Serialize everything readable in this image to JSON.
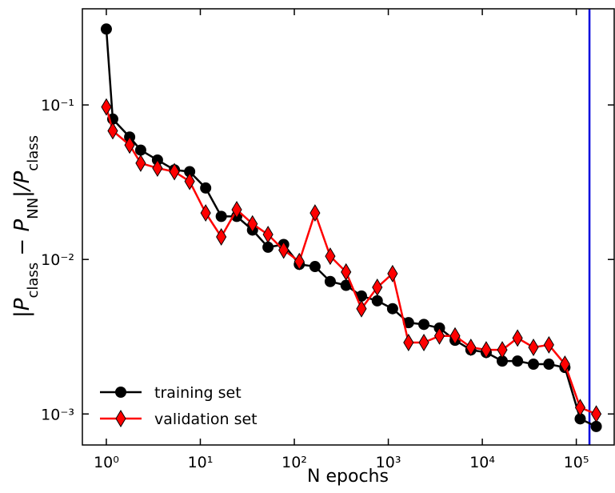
{
  "chart_data": {
    "type": "line",
    "xlabel": "N epochs",
    "ylabel": [
      "|P",
      "class",
      " − P",
      "NN",
      "|/P",
      "class"
    ],
    "x": [
      1,
      1.17,
      1.77,
      2.32,
      3.5,
      5.3,
      7.7,
      11.4,
      16.7,
      24.4,
      35.9,
      52.5,
      77,
      113,
      166,
      241,
      355,
      518,
      763,
      1110,
      1640,
      2390,
      3500,
      5130,
      7560,
      11000,
      16300,
      23700,
      35000,
      51100,
      75600,
      110000,
      163000
    ],
    "series": [
      {
        "name": "training set",
        "color": "#000000",
        "marker": "circle",
        "values": [
          0.31,
          0.081,
          0.062,
          0.051,
          0.044,
          0.038,
          0.037,
          0.029,
          0.019,
          0.019,
          0.0155,
          0.012,
          0.0125,
          0.0093,
          0.009,
          0.0072,
          0.0068,
          0.0058,
          0.0054,
          0.0048,
          0.0039,
          0.0038,
          0.0036,
          0.003,
          0.0026,
          0.0025,
          0.0022,
          0.0022,
          0.0021,
          0.0021,
          0.002,
          0.00093,
          0.00083
        ]
      },
      {
        "name": "validation set",
        "color": "#ff0000",
        "marker": "diamond",
        "values": [
          0.097,
          0.068,
          0.055,
          0.042,
          0.039,
          0.037,
          0.032,
          0.02,
          0.014,
          0.021,
          0.017,
          0.0145,
          0.0115,
          0.0097,
          0.02,
          0.0105,
          0.0083,
          0.0048,
          0.0066,
          0.0081,
          0.0029,
          0.0029,
          0.0032,
          0.0032,
          0.0027,
          0.0026,
          0.0026,
          0.0031,
          0.0027,
          0.0028,
          0.0021,
          0.0011,
          0.001
        ]
      }
    ],
    "vline": {
      "x": 138000,
      "color": "#0000dd"
    },
    "xlog": true,
    "ylog": true,
    "xlim": [
      0.556,
      253000
    ],
    "ylim": [
      0.00063,
      0.419
    ],
    "xticks": [
      {
        "value": 1,
        "label": "10⁰"
      },
      {
        "value": 10,
        "label": "10¹"
      },
      {
        "value": 100,
        "label": "10²"
      },
      {
        "value": 1000,
        "label": "10³"
      },
      {
        "value": 10000,
        "label": "10⁴"
      },
      {
        "value": 100000,
        "label": "10⁵"
      }
    ],
    "yticks": [
      {
        "value": 0.1,
        "label": "10⁻¹"
      },
      {
        "value": 0.01,
        "label": "10⁻²"
      },
      {
        "value": 0.001,
        "label": "10⁻³"
      }
    ],
    "legend": "lower left"
  }
}
